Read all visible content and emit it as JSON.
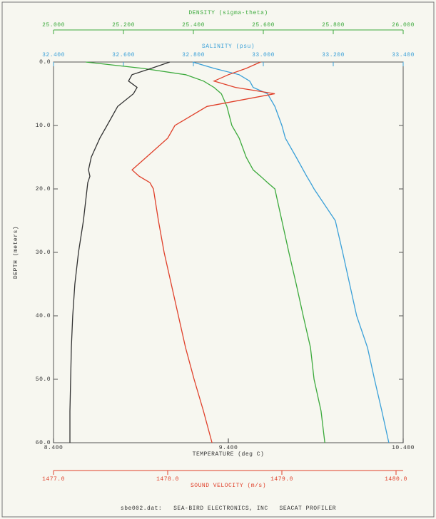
{
  "chart_data": {
    "type": "line",
    "y_label": "DEPTH (meters)",
    "footer": "sbe002.dat:   SEA-BIRD ELECTRONICS, INC   SEACAT PROFILER",
    "depths": [
      0,
      1,
      2,
      3,
      4,
      5,
      7,
      10,
      12,
      15,
      17,
      18,
      19,
      20,
      25,
      30,
      35,
      40,
      45,
      50,
      55,
      60
    ],
    "ylim": [
      60,
      0
    ],
    "yticks": [
      {
        "value": 0,
        "label": "0.0"
      },
      {
        "value": 10,
        "label": "10.0"
      },
      {
        "value": 20,
        "label": "20.0"
      },
      {
        "value": 30,
        "label": "30.0"
      },
      {
        "value": 40,
        "label": "40.0"
      },
      {
        "value": 50,
        "label": "50.0"
      },
      {
        "value": 60,
        "label": "60.0"
      }
    ],
    "axes": [
      {
        "title": "DENSITY (sigma-theta)",
        "color": "#3caa3c",
        "xlim": [
          25,
          26
        ],
        "xticks": [
          {
            "value": 25,
            "label": "25.000"
          },
          {
            "value": 25.2,
            "label": "25.200"
          },
          {
            "value": 25.4,
            "label": "25.400"
          },
          {
            "value": 25.6,
            "label": "25.600"
          },
          {
            "value": 25.8,
            "label": "25.800"
          },
          {
            "value": 26,
            "label": "26.000"
          }
        ]
      },
      {
        "title": "SALINITY (psu)",
        "color": "#3aa0d8",
        "xlim": [
          32.4,
          33.4
        ],
        "xticks": [
          {
            "value": 32.4,
            "label": "32.400"
          },
          {
            "value": 32.6,
            "label": "32.600"
          },
          {
            "value": 32.8,
            "label": "32.800"
          },
          {
            "value": 33,
            "label": "33.000"
          },
          {
            "value": 33.2,
            "label": "33.200"
          },
          {
            "value": 33.4,
            "label": "33.400"
          }
        ]
      },
      {
        "title": "TEMPERATURE (deg C)",
        "color": "#333333",
        "xlim": [
          8.4,
          10.4
        ],
        "xticks": [
          {
            "value": 8.4,
            "label": "8.400"
          },
          {
            "value": 9.4,
            "label": "9.400"
          },
          {
            "value": 10.4,
            "label": "10.400"
          }
        ]
      },
      {
        "title": "SOUND VELOCITY (m/s)",
        "color": "#e0402a",
        "xlim": [
          1477,
          1480.0625
        ],
        "xticks": [
          {
            "value": 1477,
            "label": "1477.0"
          },
          {
            "value": 1478,
            "label": "1478.0"
          },
          {
            "value": 1479,
            "label": "1479.0"
          },
          {
            "value": 1480,
            "label": "1480.0"
          }
        ]
      }
    ],
    "series": [
      {
        "axis": 0,
        "color": "#3caa3c",
        "values": [
          25.092,
          25.255,
          25.378,
          25.429,
          25.459,
          25.48,
          25.496,
          25.51,
          25.531,
          25.551,
          25.571,
          25.592,
          25.612,
          25.633,
          25.653,
          25.673,
          25.694,
          25.714,
          25.735,
          25.745,
          25.765,
          25.776
        ]
      },
      {
        "axis": 1,
        "color": "#3aa0d8",
        "values": [
          32.798,
          32.859,
          32.931,
          32.961,
          32.971,
          33.012,
          33.033,
          33.053,
          33.063,
          33.094,
          33.114,
          33.124,
          33.135,
          33.145,
          33.206,
          33.227,
          33.247,
          33.267,
          33.298,
          33.318,
          33.339,
          33.359
        ]
      },
      {
        "axis": 2,
        "color": "#333333",
        "values": [
          9.065,
          8.959,
          8.849,
          8.829,
          8.878,
          8.857,
          8.767,
          8.706,
          8.665,
          8.616,
          8.6,
          8.608,
          8.596,
          8.592,
          8.571,
          8.543,
          8.522,
          8.51,
          8.502,
          8.498,
          8.494,
          8.494
        ]
      },
      {
        "axis": 3,
        "color": "#e0402a",
        "values": [
          1478.813,
          1478.688,
          1478.531,
          1478.406,
          1478.594,
          1478.938,
          1478.344,
          1478.063,
          1478.0,
          1477.813,
          1477.688,
          1477.75,
          1477.844,
          1477.875,
          1477.919,
          1477.969,
          1478.031,
          1478.094,
          1478.156,
          1478.231,
          1478.313,
          1478.388
        ]
      }
    ]
  }
}
